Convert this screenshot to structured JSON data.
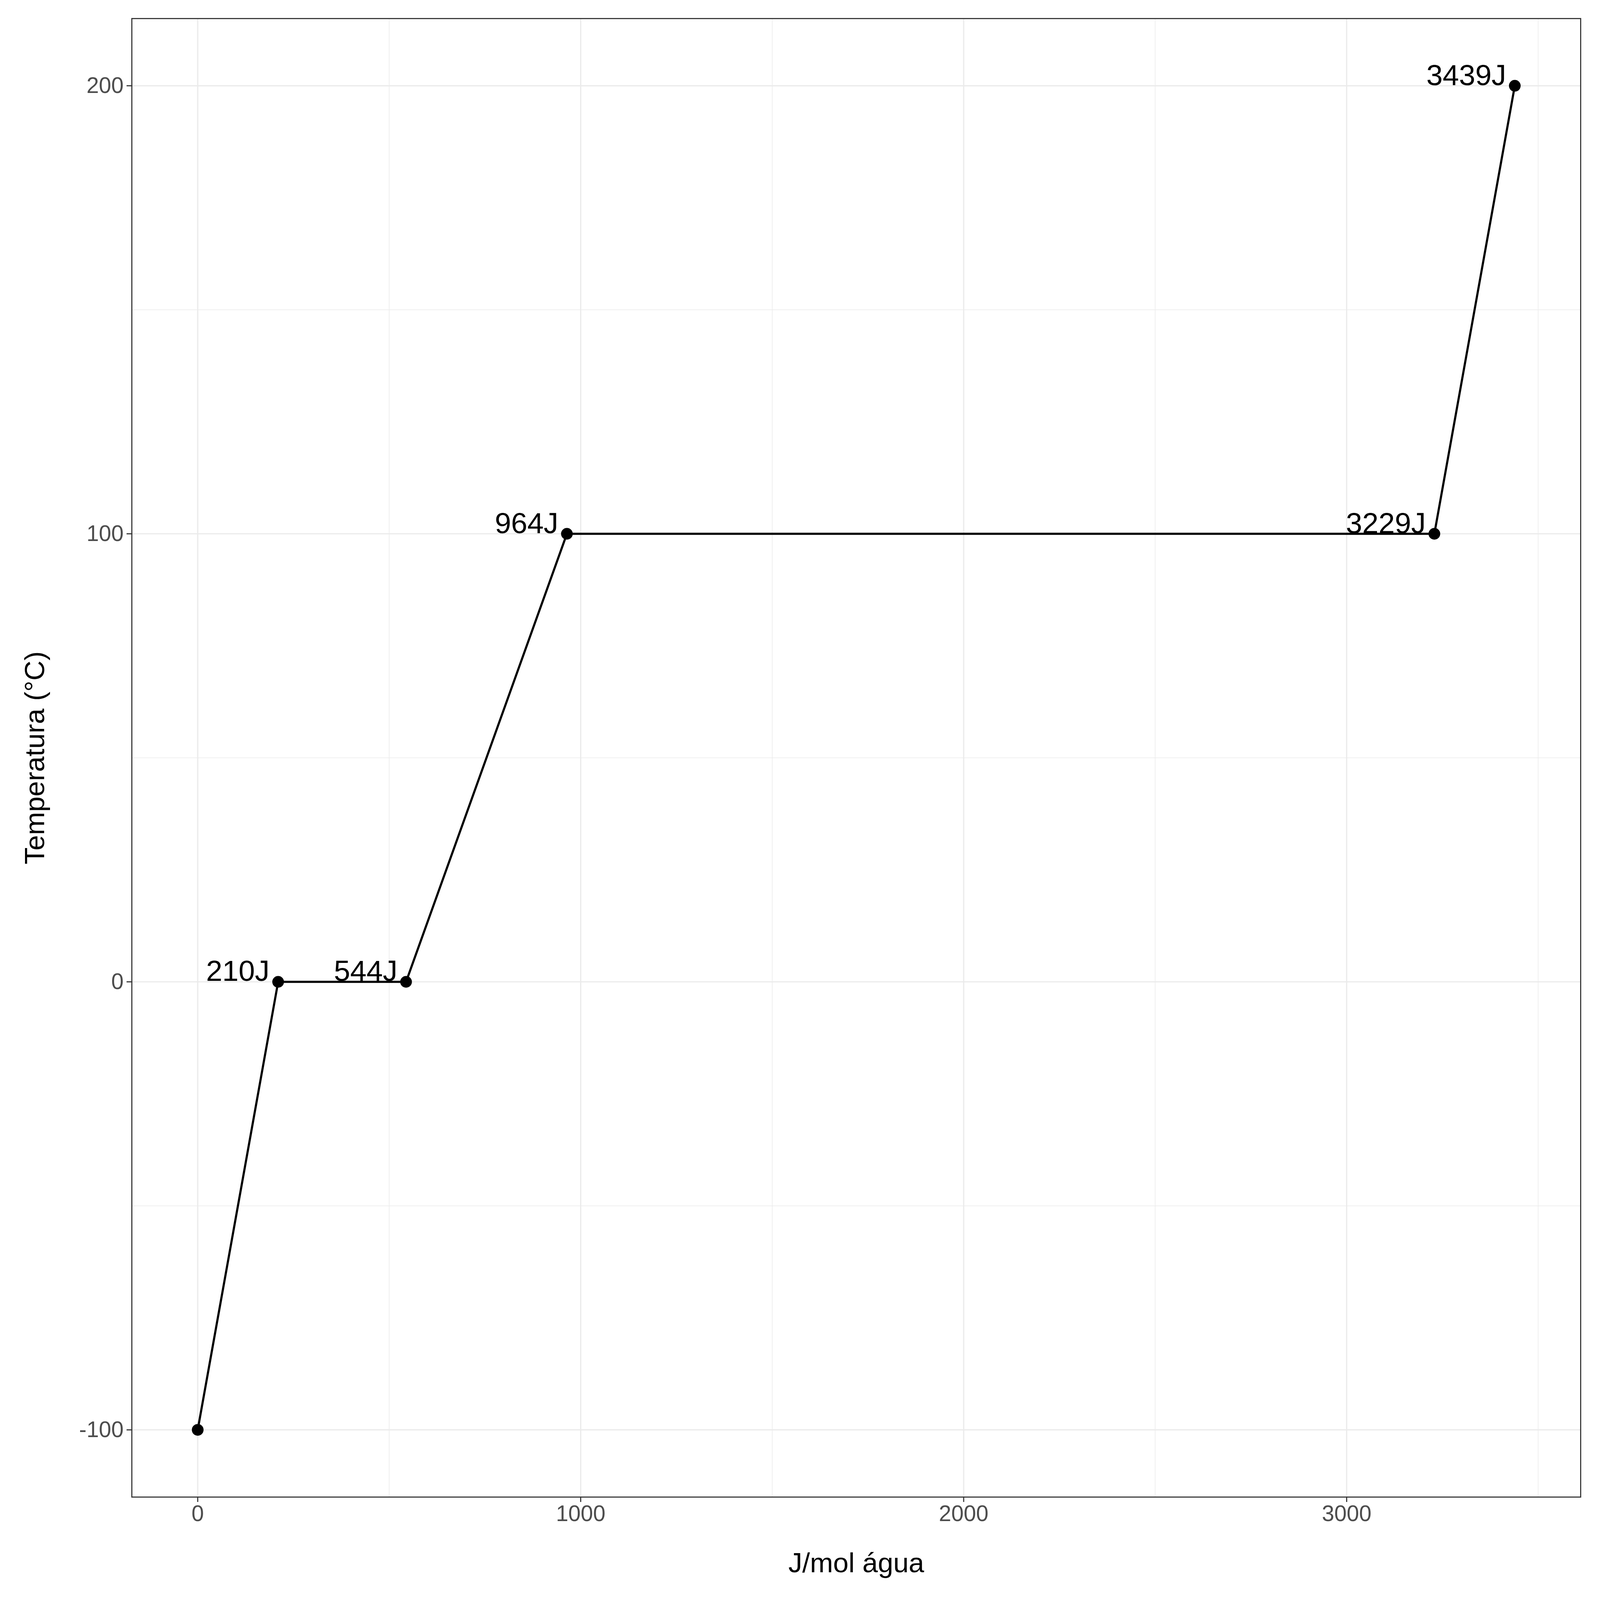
{
  "chart_data": {
    "type": "line",
    "x_label": "J/mol água",
    "y_label": "Temperatura (°C)",
    "x": [
      0,
      210,
      544,
      964,
      3229,
      3439
    ],
    "values": [
      -100,
      0,
      0,
      100,
      100,
      200
    ],
    "color": "#000000",
    "marker": "circle",
    "line_style": "solid",
    "annotations": [
      {
        "x": 210,
        "y": 0,
        "text": "210J"
      },
      {
        "x": 544,
        "y": 0,
        "text": "544J"
      },
      {
        "x": 964,
        "y": 100,
        "text": "964J"
      },
      {
        "x": 3229,
        "y": 100,
        "text": "3229J"
      },
      {
        "x": 3439,
        "y": 200,
        "text": "3439J"
      }
    ],
    "xlim": [
      -172,
      3611
    ],
    "ylim": [
      -115,
      215
    ],
    "xticks": [
      0,
      1000,
      2000,
      3000
    ],
    "yticks": [
      -100,
      0,
      100,
      200
    ],
    "grid": true
  }
}
